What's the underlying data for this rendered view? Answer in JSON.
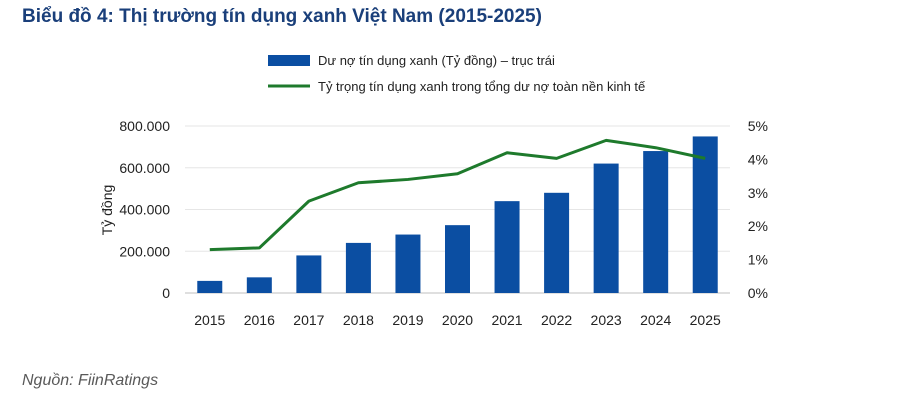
{
  "title": "Biểu đồ 4: Thị trường tín dụng xanh Việt Nam (2015-2025)",
  "source": "Nguồn: FiinRatings",
  "chart_data": {
    "type": "bar+line",
    "categories": [
      "2015",
      "2016",
      "2017",
      "2018",
      "2019",
      "2020",
      "2021",
      "2022",
      "2023",
      "2024",
      "2025"
    ],
    "series": [
      {
        "name": "Dư nợ tín dụng xanh (Tỷ đồng) – trục trái",
        "type": "bar",
        "axis": "left",
        "color": "#0b4ea2",
        "values": [
          58000,
          75000,
          180000,
          240000,
          280000,
          325000,
          440000,
          480000,
          620000,
          680000,
          750000
        ]
      },
      {
        "name": "Tỷ trọng tín dụng xanh trong tổng dư nợ toàn nền kinh tế",
        "type": "line",
        "axis": "right",
        "color": "#1e7a2c",
        "values": [
          1.3,
          1.35,
          2.75,
          3.3,
          3.4,
          3.57,
          4.2,
          4.03,
          4.57,
          4.35,
          4.03
        ]
      }
    ],
    "ylabel": "Tỷ đồng",
    "y_left": {
      "range": [
        0,
        800000
      ],
      "ticks": [
        "0",
        "200.000",
        "400.000",
        "600.000",
        "800.000"
      ]
    },
    "y_right": {
      "range": [
        0,
        5
      ],
      "ticks": [
        "0%",
        "1%",
        "2%",
        "3%",
        "4%",
        "5%"
      ]
    },
    "grid": true,
    "legend": "top-center"
  }
}
